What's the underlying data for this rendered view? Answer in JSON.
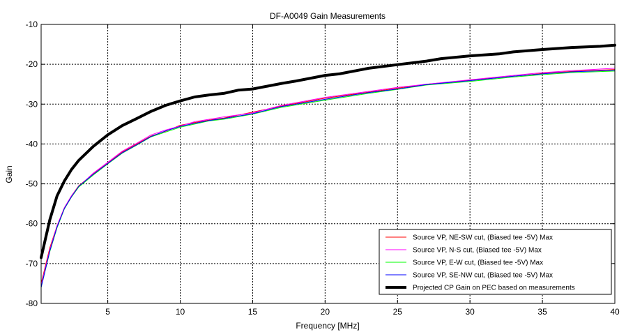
{
  "chart_data": {
    "type": "line",
    "title": "DF-A0049 Gain Measurements",
    "xlabel": "Frequency [MHz]",
    "ylabel": "Gain",
    "xlim": [
      0.4,
      40
    ],
    "ylim": [
      -80,
      -10
    ],
    "x_ticks": [
      "5",
      "10",
      "15",
      "20",
      "25",
      "30",
      "35",
      "40"
    ],
    "y_ticks": [
      "-10",
      "-20",
      "-30",
      "-40",
      "-50",
      "-60",
      "-70",
      "-80"
    ],
    "grid": true,
    "legend_position": "bottom-right",
    "series": [
      {
        "name": "Source VP, NE-SW cut, (Biased tee -5V) Max",
        "color": "#ff0000",
        "line_width": 1,
        "x": [
          0.4,
          1,
          1.5,
          2,
          2.5,
          3,
          4,
          5,
          6,
          7,
          8,
          9,
          10,
          11,
          12,
          13,
          15,
          17,
          20,
          23,
          25,
          27,
          30,
          33,
          35,
          37,
          40
        ],
        "y": [
          -75,
          -66,
          -60.5,
          -56,
          -53,
          -50.5,
          -47.5,
          -44.8,
          -42,
          -40,
          -38,
          -36.8,
          -35.3,
          -34.6,
          -34,
          -33.5,
          -32,
          -30.5,
          -28.5,
          -27,
          -26,
          -25,
          -24,
          -23,
          -22.3,
          -21.8,
          -21.3
        ]
      },
      {
        "name": "Source VP, N-S cut, (Biased tee -5V) Max",
        "color": "#ff00ff",
        "line_width": 1,
        "x": [
          0.4,
          1,
          1.5,
          2,
          2.5,
          3,
          4,
          5,
          6,
          7,
          8,
          9,
          10,
          11,
          12,
          13,
          15,
          17,
          20,
          23,
          25,
          27,
          30,
          33,
          35,
          37,
          40
        ],
        "y": [
          -75.5,
          -66.5,
          -60.5,
          -56,
          -53,
          -50.7,
          -47.3,
          -44.6,
          -41.8,
          -39.8,
          -37.7,
          -36.5,
          -35.5,
          -34.4,
          -33.8,
          -33.2,
          -32.2,
          -30.3,
          -28.3,
          -26.8,
          -25.8,
          -25,
          -23.9,
          -22.8,
          -22.1,
          -21.6,
          -21
        ]
      },
      {
        "name": "Source VP, E-W cut, (Biased tee -5V) Max",
        "color": "#00ff00",
        "line_width": 1,
        "x": [
          0.4,
          1,
          1.5,
          2,
          2.5,
          3,
          4,
          5,
          6,
          7,
          8,
          9,
          10,
          11,
          12,
          13,
          15,
          17,
          20,
          23,
          25,
          27,
          30,
          33,
          35,
          37,
          40
        ],
        "y": [
          -76,
          -67,
          -61,
          -56.3,
          -53.3,
          -50.8,
          -47.8,
          -45,
          -42.3,
          -40.3,
          -38.2,
          -37,
          -35.8,
          -35,
          -34.2,
          -33.8,
          -32.5,
          -30.8,
          -29,
          -27.3,
          -26.3,
          -25.2,
          -24.3,
          -23.2,
          -22.6,
          -22.1,
          -21.7
        ]
      },
      {
        "name": "Source VP, SE-NW cut, (Biased tee -5V) Max",
        "color": "#0000ff",
        "line_width": 1,
        "x": [
          0.4,
          1,
          1.5,
          2,
          2.5,
          3,
          4,
          5,
          6,
          7,
          8,
          9,
          10,
          11,
          12,
          13,
          15,
          17,
          20,
          23,
          25,
          27,
          30,
          33,
          35,
          37,
          40
        ],
        "y": [
          -76,
          -66.8,
          -60.8,
          -56.2,
          -53.2,
          -50.6,
          -47.6,
          -44.9,
          -42.2,
          -40.2,
          -38.1,
          -36.7,
          -35.6,
          -34.8,
          -34.1,
          -33.6,
          -32.4,
          -30.6,
          -28.8,
          -27.1,
          -26.2,
          -25.1,
          -24.1,
          -23,
          -22.4,
          -21.9,
          -21.5
        ]
      },
      {
        "name": "Projected CP Gain on PEC based on measurements",
        "color": "#000000",
        "line_width": 4,
        "x": [
          0.4,
          1,
          1.5,
          2,
          2.5,
          3,
          4,
          5,
          6,
          7,
          8,
          9,
          10,
          11,
          12,
          13,
          14,
          15,
          16,
          17,
          18,
          19,
          20,
          21,
          22,
          23,
          25,
          27,
          28,
          30,
          32,
          33,
          35,
          37,
          39,
          40
        ],
        "y": [
          -68.5,
          -59,
          -53,
          -49.3,
          -46.4,
          -44.1,
          -40.6,
          -37.7,
          -35.4,
          -33.6,
          -31.8,
          -30.3,
          -29.2,
          -28.2,
          -27.7,
          -27.3,
          -26.5,
          -26.2,
          -25.5,
          -24.8,
          -24.2,
          -23.5,
          -22.8,
          -22.4,
          -21.7,
          -21,
          -20.1,
          -19.2,
          -18.6,
          -17.9,
          -17.4,
          -16.9,
          -16.3,
          -15.8,
          -15.5,
          -15.2
        ]
      }
    ]
  }
}
